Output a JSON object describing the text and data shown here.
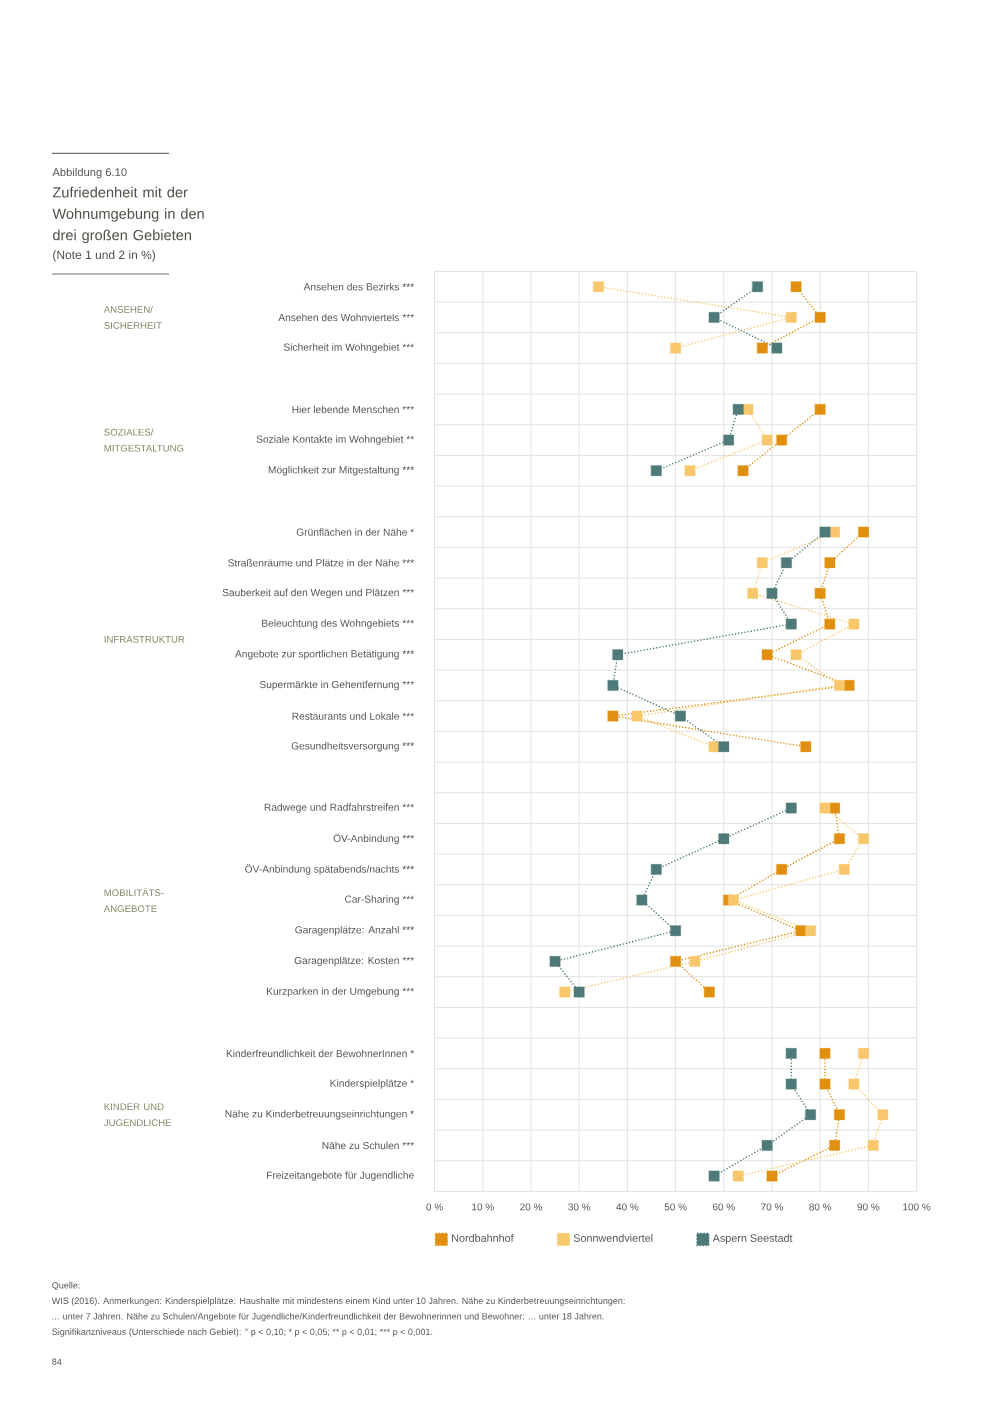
{
  "chart_data": {
    "type": "line",
    "orientation": "horizontal",
    "title": "Zufriedenheit mit der Wohnumgebung in den drei großen Gebieten",
    "subtitle": "(Note 1 und 2 in %)",
    "annotations": [
      "Abbildung 6.10",
      "ANSEHEN/ SICHERHEIT",
      "SOZIALES/ MITGESTALTUNG",
      "INFRASTRUKTUR",
      "MOBILITÄTS-ANGEBOTE",
      "KINDER UND JUGENDLICHE",
      "Quelle:",
      "WIS (2016). Anmerkungen: Kinderspielplätze: Haushalte mit mindestens einem Kind unter 10 Jahren. Nähe zu Kinderbetreuungseinrichtungen:",
      "... unter 7 Jahren. Nähe zu Schulen/Angebote für Jugendliche/Kinderfreundlichkeit der Bewohnerinnen und Bewohner: ... unter 18 Jahren.",
      "Signifikanzniveaus (Unterschiede nach Gebiet): ° p < 0,10; * p < 0,05; ** p < 0,01; *** p < 0,001.",
      "84"
    ],
    "categories": [
      "Ansehen des Bezirks ***",
      "Ansehen des Wohnviertels ***",
      "Sicherheit im Wohngebiet ***",
      null,
      "Hier lebende Menschen ***",
      "Soziale Kontakte im Wohngebiet **",
      "Möglichkeit zur Mitgestaltung ***",
      null,
      "Grünflächen in der Nähe *",
      "Straßenräume und Plätze in der Nähe ***",
      "Sauberkeit auf den Wegen und Plätzen ***",
      "Beleuchtung des Wohngebiets ***",
      "Angebote zur sportlichen Betätigung ***",
      "Supermärkte in Gehentfernung ***",
      "Restaurants und Lokale ***",
      "Gesundheitsversorgung ***",
      null,
      "Radwege und Radfahrstreifen ***",
      "ÖV-Anbindung ***",
      "ÖV-Anbindung spätabends/nachts ***",
      "Car-Sharing ***",
      "Garagenplätze: Anzahl ***",
      "Garagenplätze: Kosten ***",
      "Kurzparken in der Umgebung ***",
      null,
      "Kinderfreundlichkeit der BewohnerInnen *",
      "Kinderspielplätze *",
      "Nähe zu Kinderbetreuungseinrichtungen *",
      "Nähe zu Schulen ***",
      "Freizeitangebote für Jugendliche"
    ],
    "series": [
      {
        "name": "Nordbahnhof",
        "color": "#e0900e",
        "values": [
          75,
          80,
          68,
          null,
          80,
          72,
          64,
          null,
          89,
          82,
          80,
          82,
          69,
          86,
          37,
          77,
          null,
          83,
          84,
          72,
          61,
          76,
          50,
          57,
          null,
          81,
          81,
          84,
          83,
          70
        ]
      },
      {
        "name": "Sonnwendviertel",
        "color": "#f8c76c",
        "values": [
          34,
          74,
          50,
          null,
          65,
          69,
          53,
          null,
          83,
          68,
          66,
          87,
          75,
          84,
          42,
          58,
          null,
          81,
          89,
          85,
          62,
          78,
          54,
          27,
          null,
          89,
          87,
          93,
          91,
          63
        ]
      },
      {
        "name": "Aspern Seestadt",
        "color": "#4e7b79",
        "values": [
          67,
          58,
          71,
          null,
          63,
          61,
          46,
          null,
          81,
          73,
          70,
          74,
          38,
          37,
          51,
          60,
          null,
          74,
          60,
          46,
          43,
          50,
          25,
          30,
          null,
          74,
          74,
          78,
          69,
          58
        ]
      }
    ],
    "xlim": [
      0,
      100
    ],
    "xticks": [
      {
        "value": 0,
        "label": "0 %"
      },
      {
        "value": 10,
        "label": "10 %"
      },
      {
        "value": 20,
        "label": "20 %"
      },
      {
        "value": 30,
        "label": "30 %"
      },
      {
        "value": 40,
        "label": "40 %"
      },
      {
        "value": 50,
        "label": "50 %"
      },
      {
        "value": 60,
        "label": "60 %"
      },
      {
        "value": 70,
        "label": "70 %"
      },
      {
        "value": 80,
        "label": "80 %"
      },
      {
        "value": 90,
        "label": "90 %"
      },
      {
        "value": 100,
        "label": "100 %"
      }
    ],
    "grid": true,
    "legend": "bottom",
    "marker": "square",
    "line_style": "dotted"
  }
}
